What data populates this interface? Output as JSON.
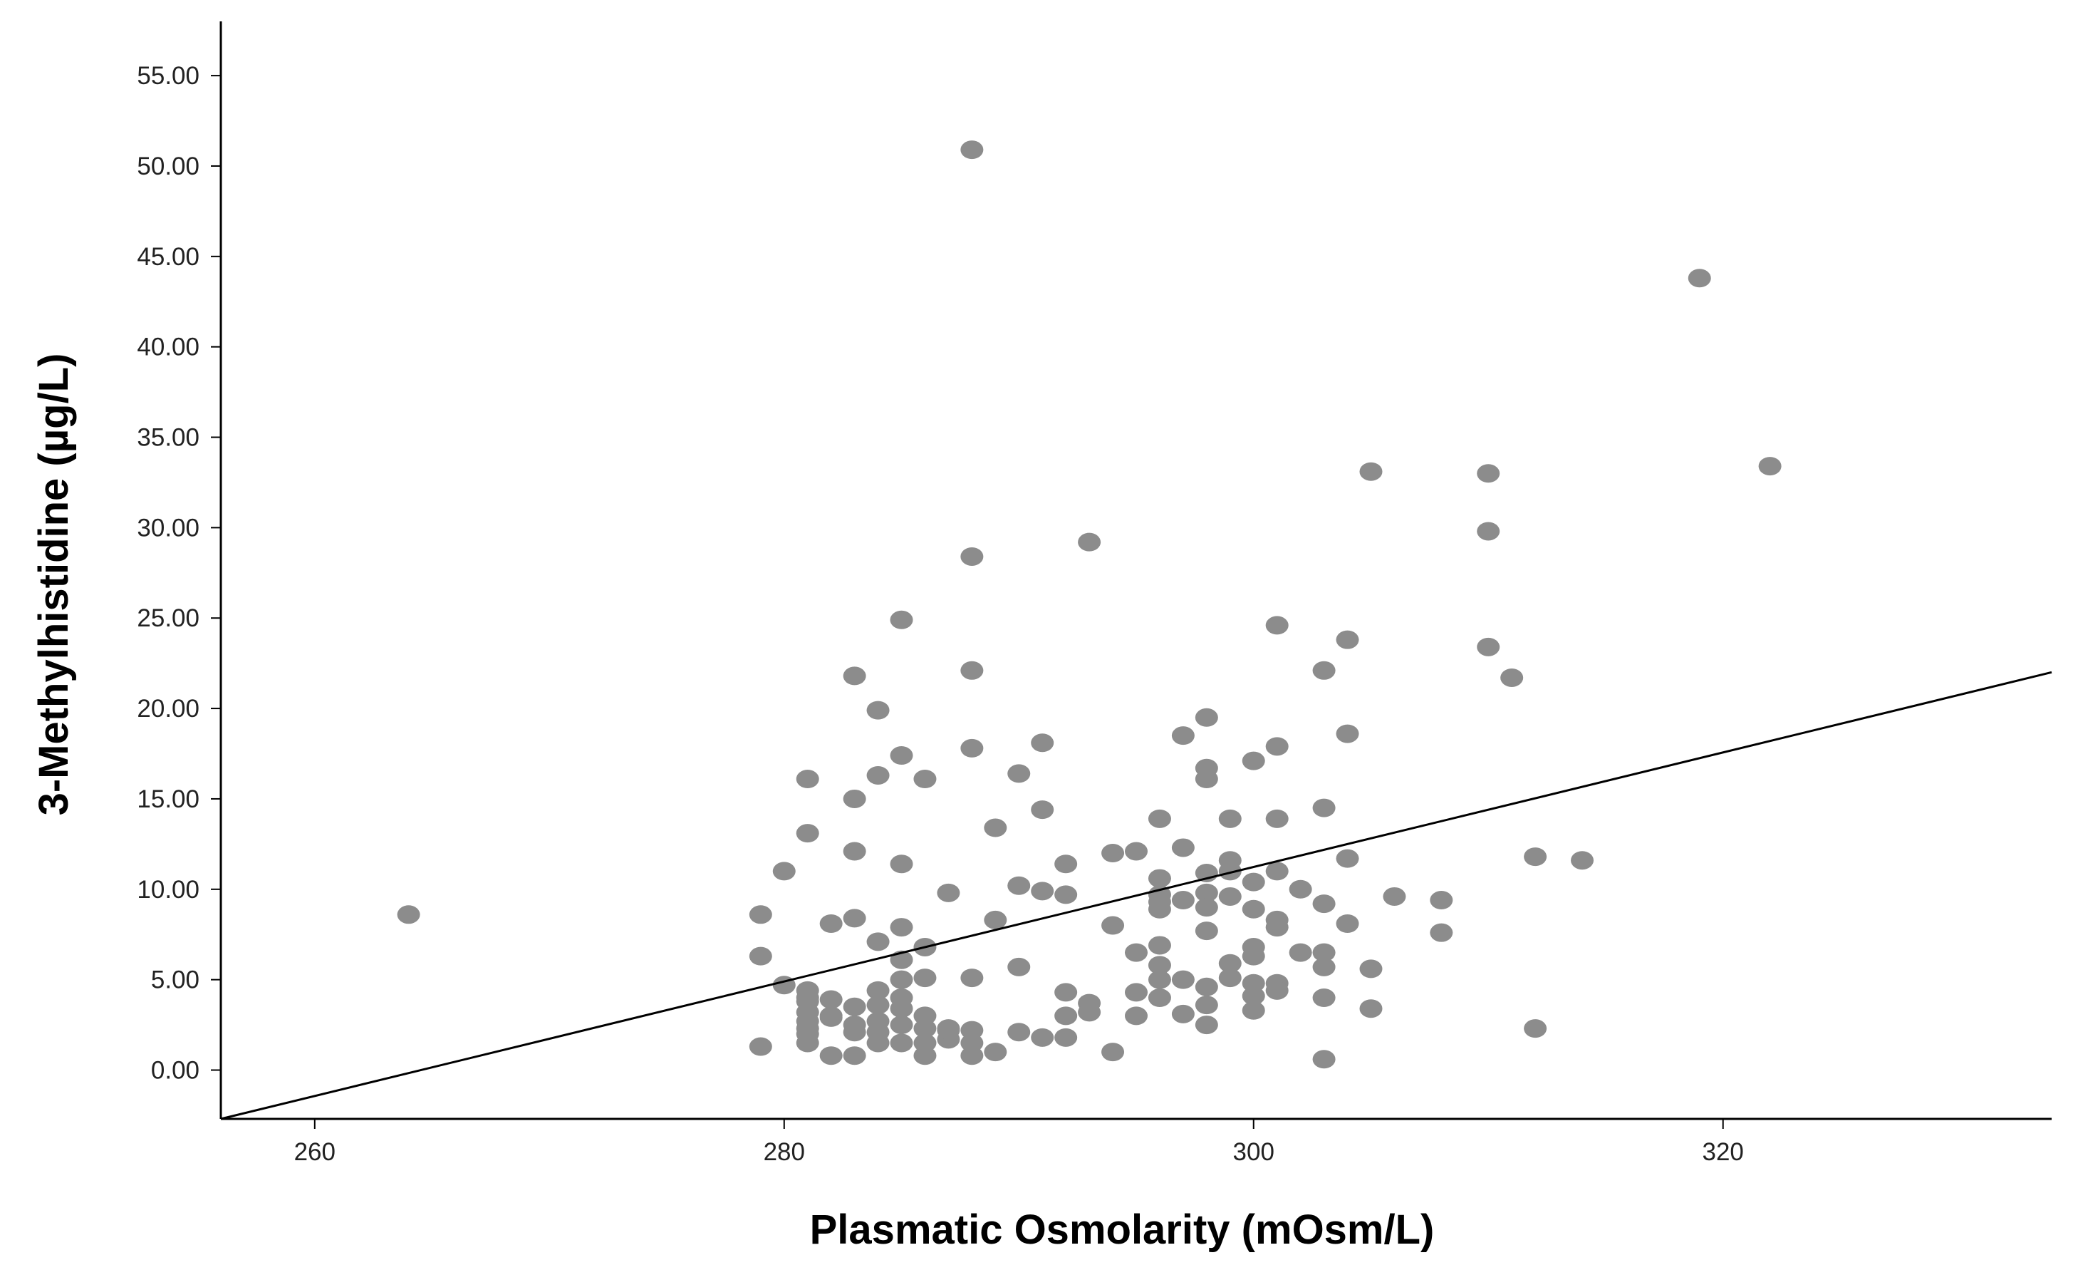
{
  "chart_data": {
    "type": "scatter",
    "title": "",
    "xlabel": "Plasmatic Osmolarity (mOsm/L)",
    "ylabel": "3-Methylhistidine (µg/L)",
    "xlim": [
      256,
      334
    ],
    "ylim": [
      -2.7,
      58
    ],
    "x_ticks": [
      260,
      280,
      300,
      320
    ],
    "x_tick_labels": [
      "260",
      "280",
      "300",
      "320"
    ],
    "y_ticks": [
      0,
      5,
      10,
      15,
      20,
      25,
      30,
      35,
      40,
      45,
      50,
      55
    ],
    "y_tick_labels": [
      "0.00",
      "5.00",
      "10.00",
      "15.00",
      "20.00",
      "25.00",
      "30.00",
      "35.00",
      "40.00",
      "45.00",
      "50.00",
      "55.00"
    ],
    "grid": false,
    "colors": {
      "points": "#8c8c8c",
      "fit_line": "#000000",
      "axes": "#000000"
    },
    "fit_line": {
      "x": [
        256,
        334
      ],
      "y": [
        -2.7,
        22.0
      ]
    },
    "x": [
      264,
      279,
      279,
      279,
      280,
      280,
      281,
      281,
      281,
      281,
      281,
      281,
      281,
      281,
      281,
      281,
      282,
      282,
      282,
      282,
      282,
      283,
      283,
      283,
      283,
      283,
      283,
      283,
      283,
      284,
      284,
      284,
      284,
      284,
      284,
      284,
      284,
      285,
      285,
      285,
      285,
      285,
      285,
      285,
      285,
      285,
      285,
      286,
      286,
      286,
      286,
      286,
      286,
      286,
      287,
      287,
      287,
      287,
      288,
      288,
      288,
      288,
      288,
      288,
      288,
      288,
      289,
      289,
      289,
      290,
      290,
      290,
      290,
      291,
      291,
      291,
      291,
      292,
      292,
      292,
      292,
      292,
      293,
      293,
      293,
      294,
      294,
      294,
      295,
      295,
      295,
      295,
      296,
      296,
      296,
      296,
      296,
      296,
      296,
      296,
      296,
      297,
      297,
      297,
      297,
      297,
      298,
      298,
      298,
      298,
      298,
      298,
      298,
      298,
      298,
      298,
      299,
      299,
      299,
      299,
      299,
      299,
      300,
      300,
      300,
      300,
      300,
      300,
      300,
      300,
      301,
      301,
      301,
      301,
      301,
      301,
      301,
      301,
      302,
      302,
      303,
      303,
      303,
      303,
      303,
      303,
      303,
      304,
      304,
      304,
      304,
      305,
      305,
      305,
      306,
      308,
      308,
      310,
      310,
      310,
      311,
      312,
      312,
      314,
      319,
      322
    ],
    "y": [
      8.6,
      8.6,
      6.3,
      1.3,
      11.0,
      4.7,
      16.1,
      13.1,
      4.4,
      3.8,
      3.2,
      2.7,
      2.0,
      1.5,
      4.0,
      2.3,
      8.1,
      3.9,
      3.0,
      0.8,
      2.9,
      21.8,
      15.0,
      12.1,
      8.4,
      3.5,
      2.5,
      0.8,
      2.1,
      19.9,
      16.3,
      7.1,
      4.4,
      3.6,
      2.7,
      1.5,
      2.1,
      24.9,
      17.4,
      11.4,
      7.9,
      6.1,
      5.0,
      4.0,
      3.4,
      2.5,
      1.5,
      16.1,
      6.8,
      5.1,
      3.0,
      2.3,
      1.5,
      0.8,
      9.8,
      2.3,
      1.7,
      2.2,
      50.9,
      28.4,
      22.1,
      17.8,
      5.1,
      2.2,
      1.5,
      0.8,
      13.4,
      8.3,
      1.0,
      16.4,
      10.2,
      5.7,
      2.1,
      18.1,
      14.4,
      9.9,
      1.8,
      11.4,
      9.7,
      4.3,
      3.0,
      1.8,
      29.2,
      3.7,
      3.2,
      12.0,
      8.0,
      1.0,
      12.1,
      6.5,
      4.3,
      3.0,
      13.9,
      10.6,
      9.7,
      8.9,
      6.9,
      5.8,
      5.0,
      4.0,
      9.3,
      18.5,
      12.3,
      5.0,
      3.1,
      9.4,
      19.5,
      16.7,
      16.1,
      10.9,
      9.8,
      9.0,
      7.7,
      4.6,
      3.6,
      2.5,
      13.9,
      11.6,
      9.6,
      5.9,
      5.1,
      11.0,
      17.1,
      10.4,
      8.9,
      6.8,
      4.8,
      4.1,
      3.3,
      6.3,
      24.6,
      17.9,
      13.9,
      11.0,
      8.3,
      7.9,
      4.8,
      4.4,
      10.0,
      6.5,
      22.1,
      14.5,
      9.2,
      6.5,
      5.7,
      4.0,
      0.6,
      23.8,
      18.6,
      11.7,
      8.1,
      33.1,
      5.6,
      3.4,
      9.6,
      9.4,
      7.6,
      33.0,
      29.8,
      23.4,
      21.7,
      11.8,
      2.3,
      11.6,
      43.8,
      33.4
    ]
  }
}
